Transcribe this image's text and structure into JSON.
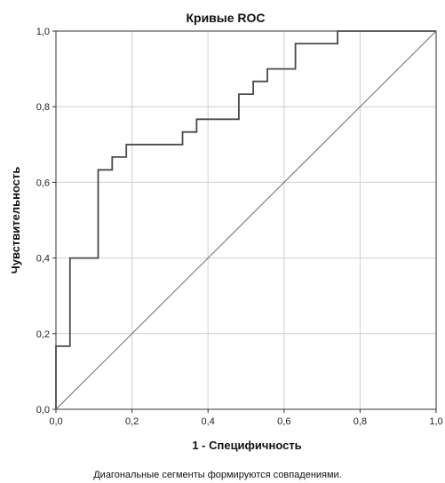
{
  "chart_data": {
    "type": "line",
    "title": "Кривые ROC",
    "xlabel": "1 - Специфичность",
    "ylabel": "Чувствительность",
    "xlim": [
      0,
      1
    ],
    "ylim": [
      0,
      1
    ],
    "x_ticks": [
      "0,0",
      "0,2",
      "0,4",
      "0,6",
      "0,8",
      "1,0"
    ],
    "y_ticks": [
      "0,0",
      "0,2",
      "0,4",
      "0,6",
      "0,8",
      "1,0"
    ],
    "grid": true,
    "footnote": "Диагональные сегменты формируются совпадениями.",
    "series": [
      {
        "kind": "roc",
        "color": "#4a4a4a",
        "x": [
          0,
          0,
          0.037,
          0.037,
          0.111,
          0.111,
          0.148,
          0.148,
          0.185,
          0.185,
          0.333,
          0.333,
          0.37,
          0.37,
          0.481,
          0.481,
          0.519,
          0.519,
          0.556,
          0.556,
          0.63,
          0.63,
          0.741,
          0.741,
          1.0
        ],
        "y": [
          0,
          0.167,
          0.167,
          0.4,
          0.4,
          0.633,
          0.633,
          0.667,
          0.667,
          0.7,
          0.7,
          0.733,
          0.733,
          0.767,
          0.767,
          0.833,
          0.833,
          0.867,
          0.867,
          0.9,
          0.9,
          0.967,
          0.967,
          1.0,
          1.0
        ]
      },
      {
        "kind": "reference",
        "color": "#6a6a6a",
        "x": [
          0,
          1
        ],
        "y": [
          0,
          1
        ]
      }
    ]
  }
}
